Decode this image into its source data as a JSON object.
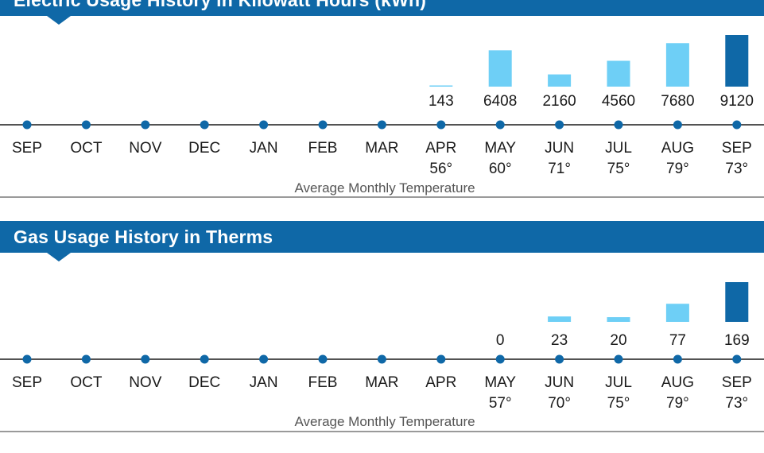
{
  "electric": {
    "title": "Electric Usage History in Kilowatt Hours (kWh)",
    "avg_label": "Average Monthly Temperature"
  },
  "gas": {
    "title": "Gas Usage History in Therms",
    "avg_label": "Average Monthly Temperature"
  },
  "colors": {
    "header": "#0f68a7",
    "bar_light": "#6ecff6",
    "bar_current": "#0f68a7",
    "axis": "#1a1a1a",
    "dot": "#0f68a7"
  },
  "chart_data": [
    {
      "type": "bar",
      "title": "Electric Usage History in Kilowatt Hours (kWh)",
      "categories": [
        "SEP",
        "OCT",
        "NOV",
        "DEC",
        "JAN",
        "FEB",
        "MAR",
        "APR",
        "MAY",
        "JUN",
        "JUL",
        "AUG",
        "SEP"
      ],
      "values": [
        null,
        null,
        null,
        null,
        null,
        null,
        null,
        143,
        6408,
        2160,
        4560,
        7680,
        9120
      ],
      "value_labels": [
        "",
        "",
        "",
        "",
        "",
        "",
        "",
        "143",
        "6408",
        "2160",
        "4560",
        "7680",
        "9120"
      ],
      "temperatures": [
        "",
        "",
        "",
        "",
        "",
        "",
        "",
        "56°",
        "60°",
        "71°",
        "75°",
        "79°",
        "73°"
      ],
      "current_index": 12,
      "ylim": [
        0,
        9120
      ]
    },
    {
      "type": "bar",
      "title": "Gas Usage History in Therms",
      "categories": [
        "SEP",
        "OCT",
        "NOV",
        "DEC",
        "JAN",
        "FEB",
        "MAR",
        "APR",
        "MAY",
        "JUN",
        "JUL",
        "AUG",
        "SEP"
      ],
      "values": [
        null,
        null,
        null,
        null,
        null,
        null,
        null,
        null,
        0,
        23,
        20,
        77,
        169
      ],
      "value_labels": [
        "",
        "",
        "",
        "",
        "",
        "",
        "",
        "",
        "0",
        "23",
        "20",
        "77",
        "169"
      ],
      "temperatures": [
        "",
        "",
        "",
        "",
        "",
        "",
        "",
        "",
        "57°",
        "70°",
        "75°",
        "79°",
        "73°"
      ],
      "current_index": 12,
      "ylim": [
        0,
        169
      ]
    }
  ]
}
